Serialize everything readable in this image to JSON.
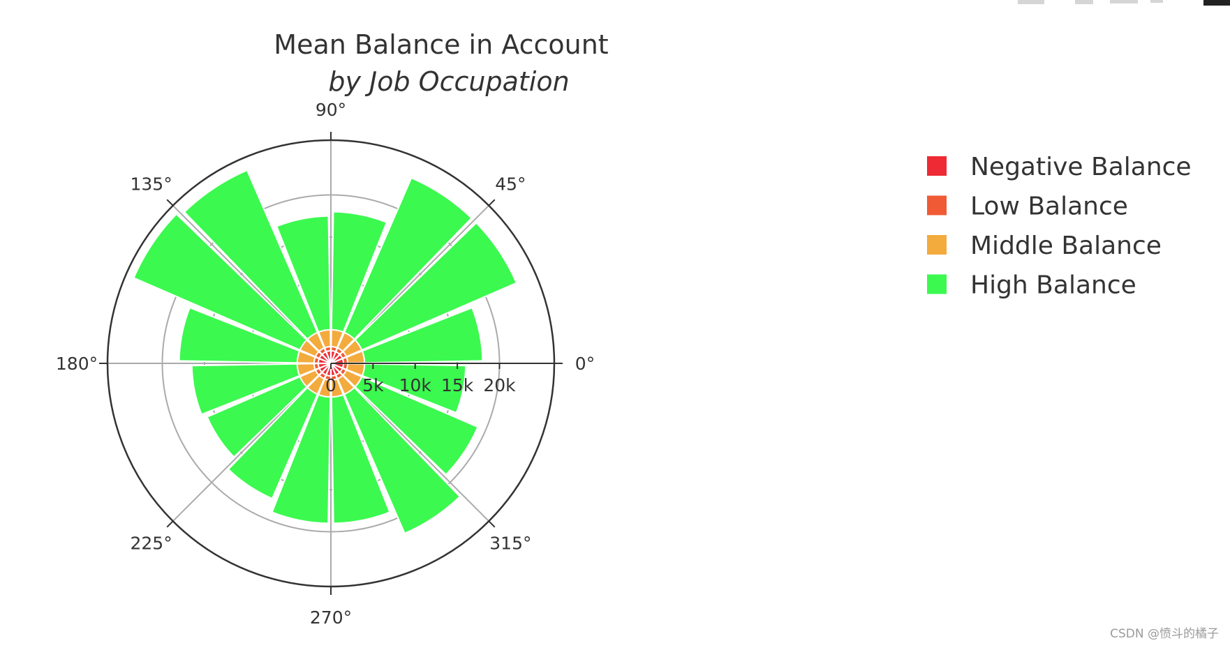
{
  "watermark": "CSDN @愤斗的橘子",
  "chart_data": {
    "type": "barpolar",
    "title": "Mean Balance in Account",
    "subtitle": "by Job Occupation",
    "angular_axis": {
      "tick_labels": [
        "0°",
        "45°",
        "90°",
        "135°",
        "180°",
        "225°",
        "270°",
        "315°"
      ],
      "tick_values": [
        0,
        45,
        90,
        135,
        180,
        225,
        270,
        315
      ],
      "direction": "counterclockwise"
    },
    "radial_axis": {
      "range": [
        0,
        26500
      ],
      "tick_values": [
        0,
        5000,
        10000,
        15000,
        20000
      ],
      "tick_labels": [
        "0",
        "5k",
        "10k",
        "15k",
        "20k"
      ],
      "grid": true
    },
    "bar_angles": [
      11.25,
      33.75,
      56.25,
      78.75,
      101.25,
      123.75,
      146.25,
      168.75,
      191.25,
      213.75,
      236.25,
      258.75,
      281.25,
      303.75,
      326.25,
      348.75
    ],
    "legend_position": "top-right",
    "series": [
      {
        "name": "Negative Balance",
        "color": "#ee2a35",
        "values": [
          1500,
          1500,
          1500,
          1500,
          1500,
          1500,
          1500,
          1500,
          1500,
          1500,
          1500,
          1500,
          1500,
          1500,
          1500,
          1500
        ]
      },
      {
        "name": "Low Balance",
        "color": "#f05a35",
        "values": [
          500,
          500,
          500,
          500,
          500,
          500,
          500,
          500,
          500,
          500,
          500,
          500,
          500,
          500,
          500,
          500
        ]
      },
      {
        "name": "Middle Balance",
        "color": "#f3ab3d",
        "values": [
          2000,
          2000,
          2000,
          2000,
          2000,
          2000,
          2000,
          2000,
          2000,
          2000,
          2000,
          2000,
          2000,
          2000,
          2000,
          2000
        ]
      },
      {
        "name": "High Balance",
        "color": "#3bf94f",
        "values": [
          14000,
          20000,
          20000,
          14000,
          13500,
          21000,
          21500,
          14000,
          12500,
          12000,
          13500,
          15000,
          15000,
          18000,
          15000,
          12000
        ]
      }
    ]
  }
}
